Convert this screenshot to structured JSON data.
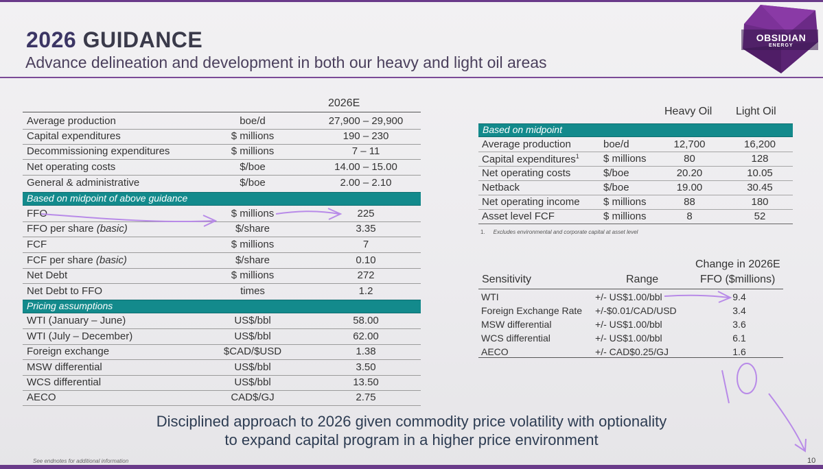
{
  "header": {
    "title_year": "2026",
    "title_rest": "GUIDANCE",
    "subtitle": "Advance delineation and development in both our heavy and light oil areas",
    "logo_text": "OBSIDIAN",
    "logo_sub": "ENERGY"
  },
  "guidance": {
    "column_header": "2026E",
    "rows": [
      {
        "label": "Average production",
        "unit": "boe/d",
        "value": "27,900 – 29,900"
      },
      {
        "label": "Capital expenditures",
        "unit": "$ millions",
        "value": "190 – 230"
      },
      {
        "label": "Decommissioning expenditures",
        "unit": "$ millions",
        "value": "7 – 11"
      },
      {
        "label": "Net operating costs",
        "unit": "$/boe",
        "value": "14.00 – 15.00"
      },
      {
        "label": "General & administrative",
        "unit": "$/boe",
        "value": "2.00 – 2.10"
      }
    ],
    "midpoint_band": "Based on midpoint of above guidance",
    "midpoint_rows": [
      {
        "label": "FFO",
        "suffix": "",
        "unit": "$ millions",
        "value": "225"
      },
      {
        "label": "FFO per share",
        "suffix": "(basic)",
        "unit": "$/share",
        "value": "3.35"
      },
      {
        "label": "FCF",
        "suffix": "",
        "unit": "$ millions",
        "value": "7"
      },
      {
        "label": "FCF per share",
        "suffix": "(basic)",
        "unit": "$/share",
        "value": "0.10"
      },
      {
        "label": "Net Debt",
        "suffix": "",
        "unit": "$ millions",
        "value": "272"
      },
      {
        "label": "Net Debt to FFO",
        "suffix": "",
        "unit": "times",
        "value": "1.2"
      }
    ],
    "pricing_band": "Pricing assumptions",
    "pricing_rows": [
      {
        "label": "WTI (January – June)",
        "unit": "US$/bbl",
        "value": "58.00"
      },
      {
        "label": "WTI (July – December)",
        "unit": "US$/bbl",
        "value": "62.00"
      },
      {
        "label": "Foreign exchange",
        "unit": "$CAD/$USD",
        "value": "1.38"
      },
      {
        "label": "MSW differential",
        "unit": "US$/bbl",
        "value": "3.50"
      },
      {
        "label": "WCS differential",
        "unit": "US$/bbl",
        "value": "13.50"
      },
      {
        "label": "AECO",
        "unit": "CAD$/GJ",
        "value": "2.75"
      }
    ]
  },
  "asset_table": {
    "col_heavy": "Heavy Oil",
    "col_light": "Light Oil",
    "band": "Based on midpoint",
    "rows": [
      {
        "label": "Average production",
        "sup": "",
        "unit": "boe/d",
        "heavy": "12,700",
        "light": "16,200"
      },
      {
        "label": "Capital expenditures",
        "sup": "1",
        "unit": "$ millions",
        "heavy": "80",
        "light": "128"
      },
      {
        "label": "Net operating costs",
        "sup": "",
        "unit": "$/boe",
        "heavy": "20.20",
        "light": "10.05"
      },
      {
        "label": "Netback",
        "sup": "",
        "unit": "$/boe",
        "heavy": "19.00",
        "light": "30.45"
      },
      {
        "label": "Net operating income",
        "sup": "",
        "unit": "$ millions",
        "heavy": "88",
        "light": "180"
      },
      {
        "label": "Asset level FCF",
        "sup": "",
        "unit": "$ millions",
        "heavy": "8",
        "light": "52"
      }
    ],
    "footnote_num": "1.",
    "footnote_text": "Excludes environmental and corporate capital at asset level"
  },
  "sensitivity": {
    "col_name": "Sensitivity",
    "col_range": "Range",
    "col_change_1": "Change in 2026E",
    "col_change_2": "FFO ($millions)",
    "rows": [
      {
        "name": "WTI",
        "range": "+/- US$1.00/bbl",
        "change": "9.4"
      },
      {
        "name": "Foreign Exchange Rate",
        "range": "+/-$0.01/CAD/USD",
        "change": "3.4"
      },
      {
        "name": "MSW differential",
        "range": "+/- US$1.00/bbl",
        "change": "3.6"
      },
      {
        "name": "WCS differential",
        "range": "+/- US$1.00/bbl",
        "change": "6.1"
      },
      {
        "name": "AECO",
        "range": "+/- CAD$0.25/GJ",
        "change": "1.6"
      }
    ]
  },
  "footer": {
    "tagline_1": "Disciplined approach to 2026 given commodity price volatility with optionality",
    "tagline_2": "to expand capital program in a higher price environment",
    "endnote": "See endnotes for additional information",
    "page_number": "10"
  },
  "colors": {
    "band": "#138a8c",
    "brand_purple": "#6a3b8a",
    "annotation": "#b88ae8"
  }
}
